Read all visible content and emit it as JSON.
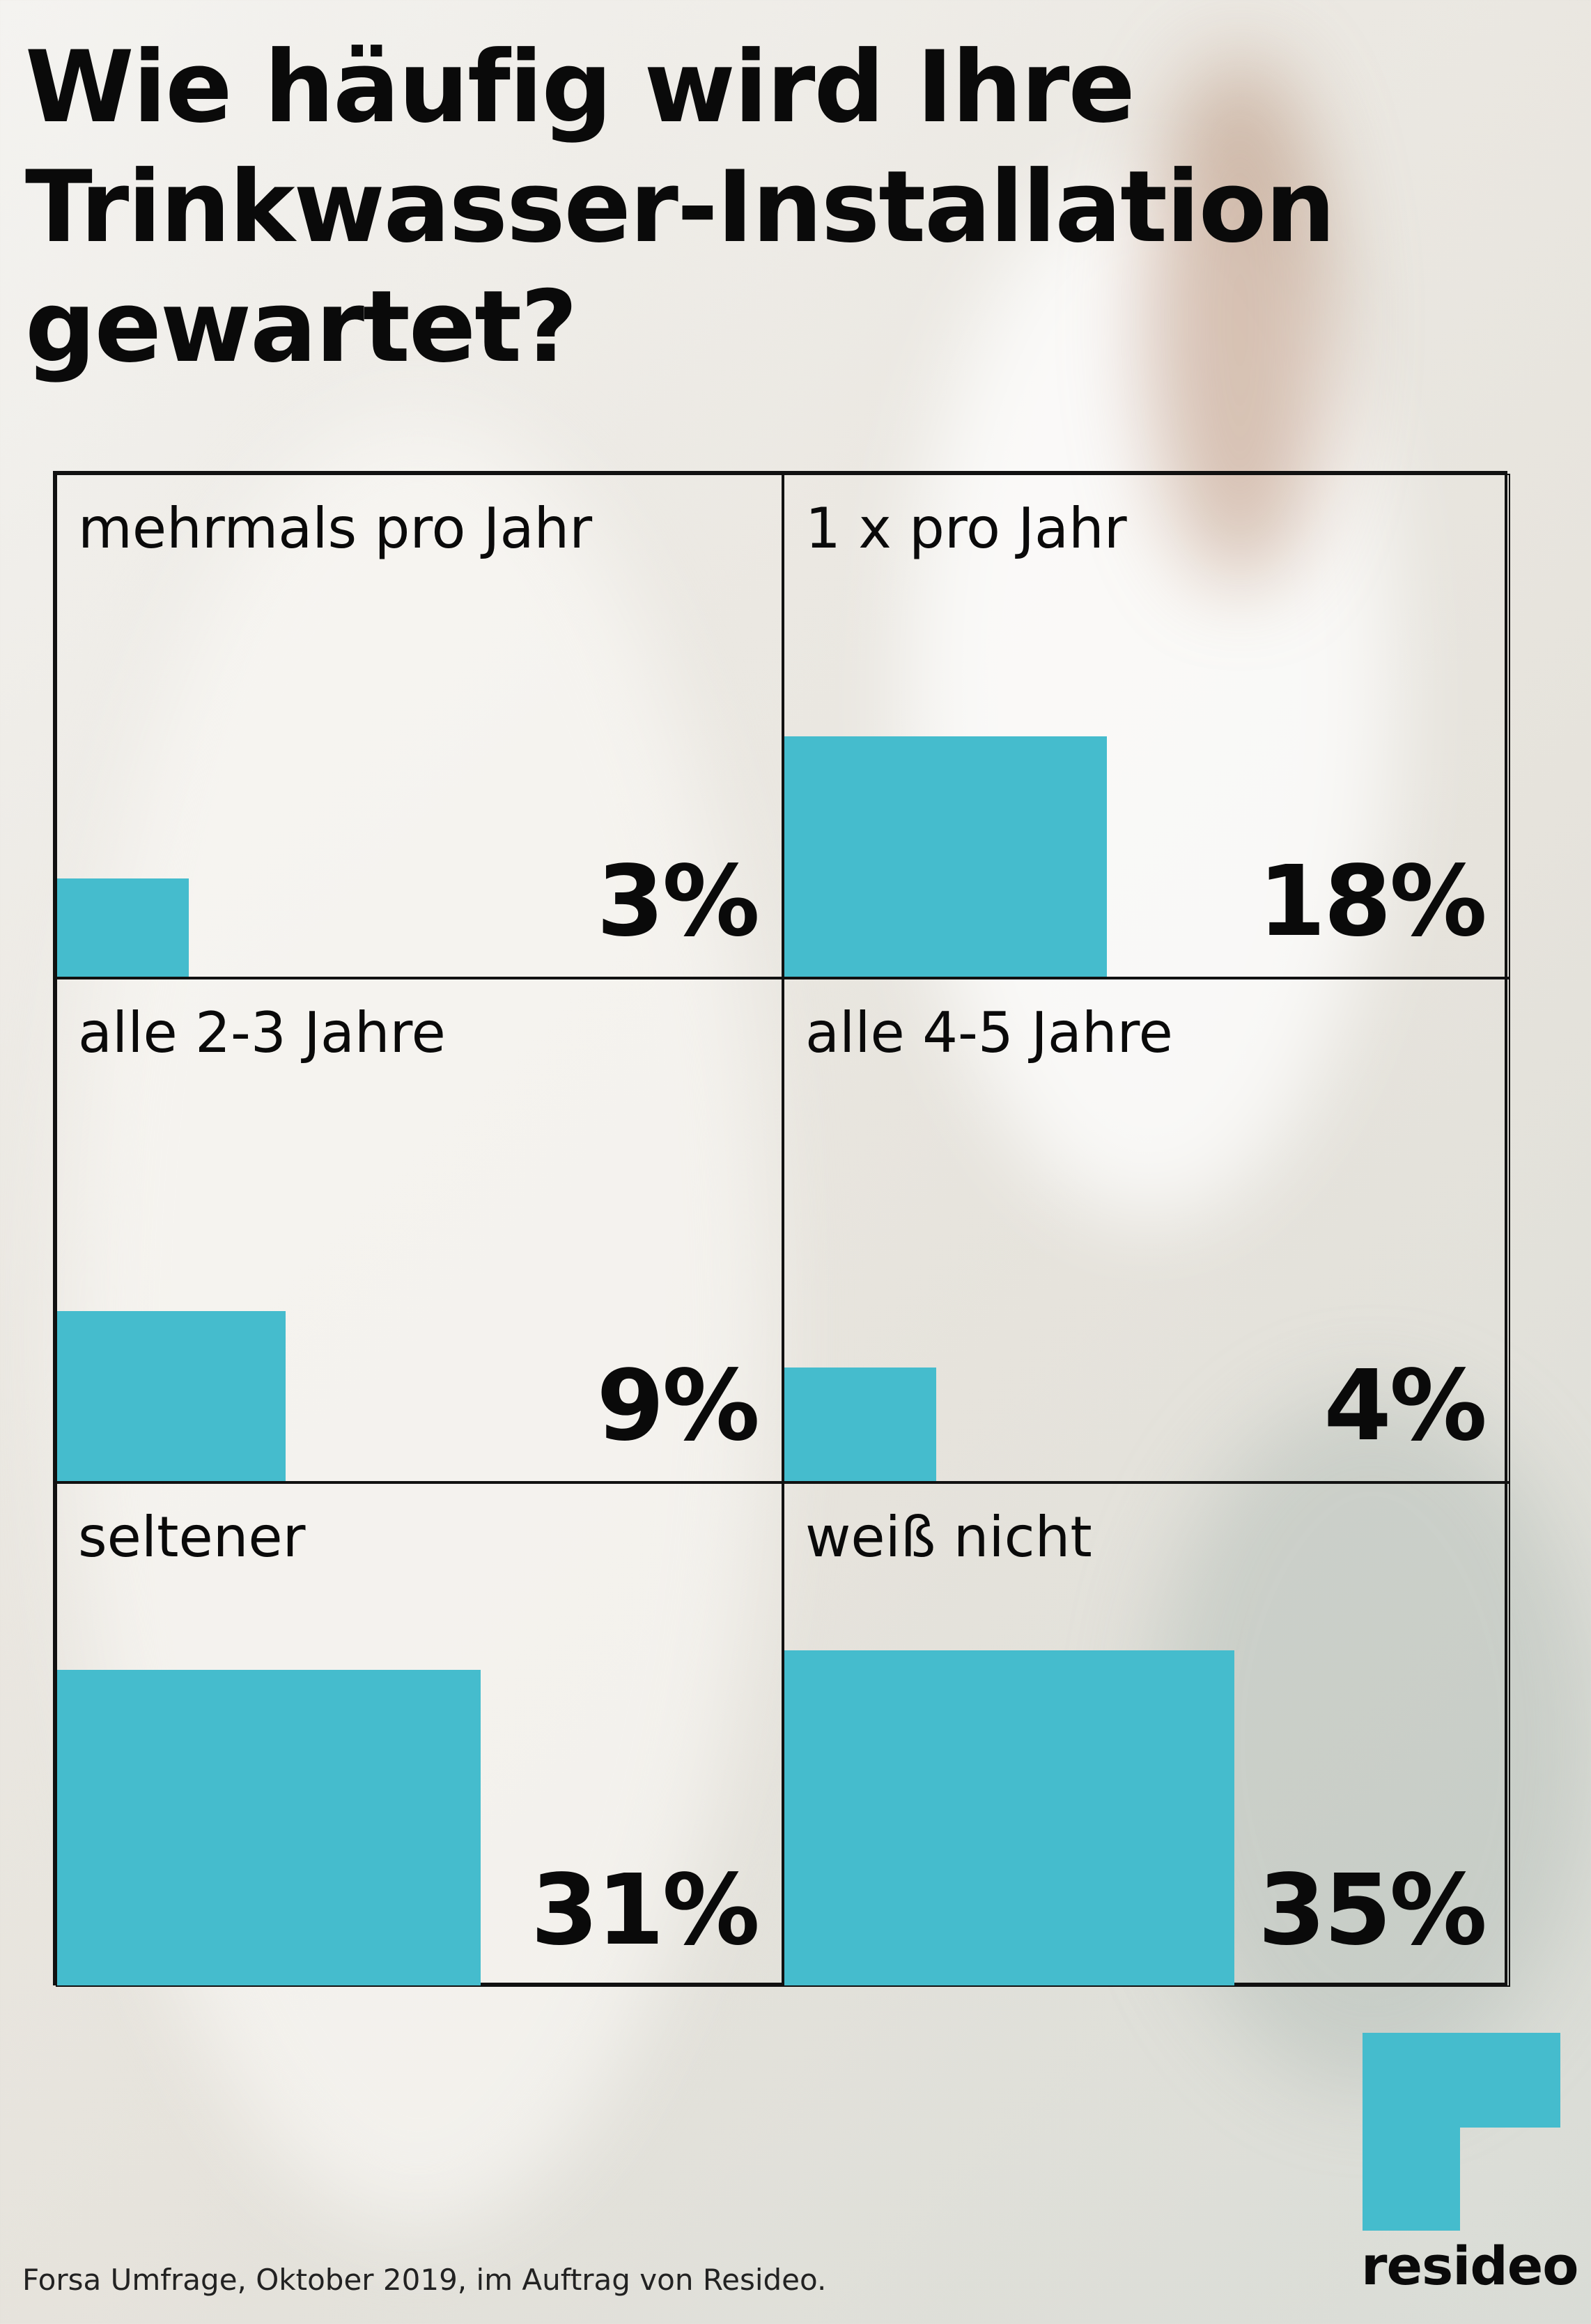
{
  "title_lines": [
    "Wie häufig wird Ihre",
    "Trinkwasser-Installation",
    "gewartet?"
  ],
  "chart_data": {
    "type": "bar",
    "title": "Wie häufig wird Ihre Trinkwasser-Installation gewartet?",
    "categories": [
      "mehrmals pro Jahr",
      "1 x pro Jahr",
      "alle 2-3 Jahre",
      "alle 4-5 Jahre",
      "seltener",
      "weiß nicht"
    ],
    "values": [
      3,
      18,
      9,
      4,
      31,
      35
    ],
    "value_labels": [
      "3%",
      "18%",
      "9%",
      "4%",
      "31%",
      "35%"
    ],
    "unit": "%",
    "ylim": [
      0,
      100
    ],
    "bar_color": "#45bccd",
    "grid": true
  },
  "footer": "Forsa Umfrage, Oktober 2019, im Auftrag von Resideo.",
  "brand": {
    "name": "resideo",
    "color": "#45bccd"
  }
}
